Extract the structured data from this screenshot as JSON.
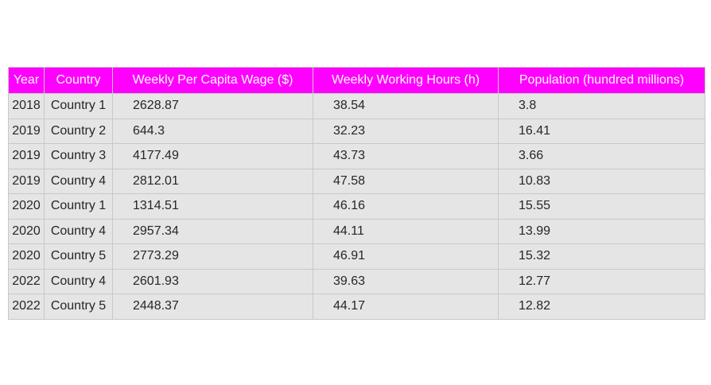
{
  "chart_data": {
    "type": "table",
    "columns": [
      "Year",
      "Country",
      "Weekly Per Capita Wage ($)",
      "Weekly Working Hours (h)",
      "Population (hundred millions)"
    ],
    "rows": [
      [
        "2018",
        "Country 1",
        "2628.87",
        "38.54",
        "3.8"
      ],
      [
        "2019",
        "Country 2",
        "644.3",
        "32.23",
        "16.41"
      ],
      [
        "2019",
        "Country 3",
        "4177.49",
        "43.73",
        "3.66"
      ],
      [
        "2019",
        "Country 4",
        "2812.01",
        "47.58",
        "10.83"
      ],
      [
        "2020",
        "Country 1",
        "1314.51",
        "46.16",
        "15.55"
      ],
      [
        "2020",
        "Country 4",
        "2957.34",
        "44.11",
        "13.99"
      ],
      [
        "2020",
        "Country 5",
        "2773.29",
        "46.91",
        "15.32"
      ],
      [
        "2022",
        "Country 4",
        "2601.93",
        "39.63",
        "12.77"
      ],
      [
        "2022",
        "Country 5",
        "2448.37",
        "44.17",
        "12.82"
      ]
    ],
    "header_color": "#ff00ff",
    "header_text_color": "#ffffff",
    "cell_color": "#e5e5e5",
    "border_color": "#c8c8c8"
  }
}
